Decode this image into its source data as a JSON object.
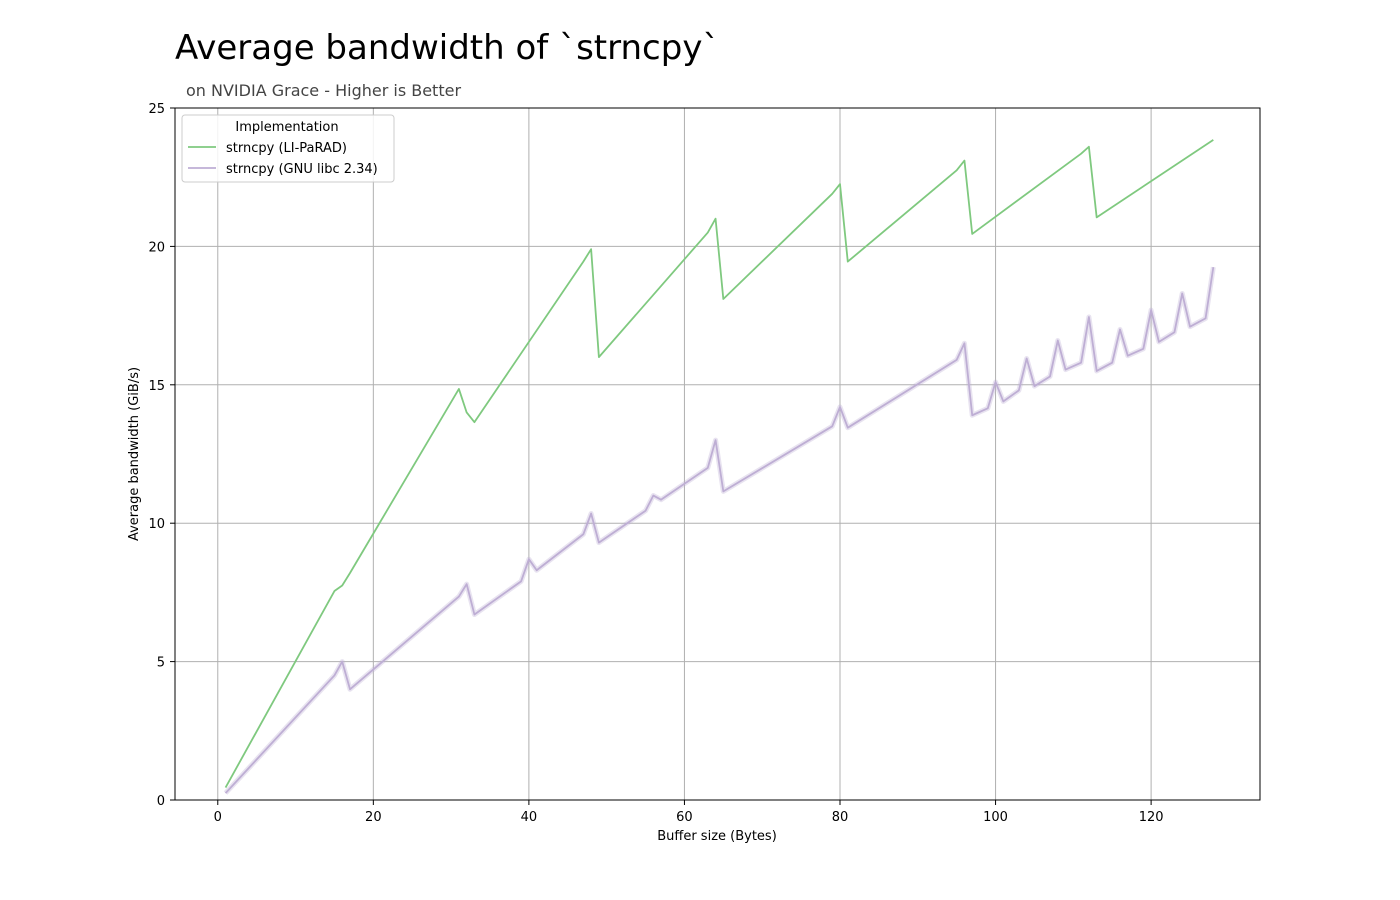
{
  "chart_data": {
    "type": "line",
    "title": "Average bandwidth of `strncpy`",
    "subtitle": "on NVIDIA Grace - Higher is Better",
    "xlabel": "Buffer size (Bytes)",
    "ylabel": "Average bandwidth (GiB/s)",
    "xlim": [
      -5.5,
      134
    ],
    "ylim": [
      0,
      25
    ],
    "xticks": [
      0,
      20,
      40,
      60,
      80,
      100,
      120
    ],
    "yticks": [
      0,
      5,
      10,
      15,
      20,
      25
    ],
    "grid": true,
    "legend": {
      "title": "Implementation",
      "placement": "top-left"
    },
    "series": [
      {
        "name": "strncpy (LI-PaRAD)",
        "color": "#7fc97f",
        "x": [
          1,
          15,
          16,
          17,
          31,
          32,
          33,
          47,
          48,
          49,
          63,
          64,
          65,
          79,
          80,
          81,
          95,
          96,
          97,
          111,
          112,
          113,
          128
        ],
        "y": [
          0.45,
          7.55,
          7.75,
          8.2,
          14.85,
          14.0,
          13.65,
          19.45,
          19.9,
          16.0,
          20.5,
          21.0,
          18.1,
          21.9,
          22.25,
          19.45,
          22.75,
          23.1,
          20.45,
          23.35,
          23.6,
          21.05,
          23.85
        ]
      },
      {
        "name": "strncpy (GNU libc 2.34)",
        "color": "#beaed4",
        "x": [
          1,
          15,
          16,
          17,
          31,
          32,
          33,
          39,
          40,
          41,
          47,
          48,
          49,
          55,
          56,
          57,
          63,
          64,
          65,
          79,
          80,
          81,
          95,
          96,
          97,
          99,
          100,
          101,
          103,
          104,
          105,
          107,
          108,
          109,
          111,
          112,
          113,
          115,
          116,
          117,
          119,
          120,
          121,
          123,
          124,
          125,
          127,
          128
        ],
        "y": [
          0.25,
          4.5,
          5.0,
          4.0,
          7.35,
          7.8,
          6.7,
          7.9,
          8.7,
          8.3,
          9.6,
          10.35,
          9.3,
          10.45,
          11.0,
          10.85,
          12.0,
          13.0,
          11.15,
          13.5,
          14.2,
          13.45,
          15.9,
          16.5,
          13.9,
          14.15,
          15.1,
          14.4,
          14.8,
          15.95,
          14.95,
          15.3,
          16.6,
          15.55,
          15.8,
          17.45,
          15.5,
          15.8,
          17.0,
          16.05,
          16.3,
          17.7,
          16.55,
          16.9,
          18.3,
          17.1,
          17.4,
          19.25
        ]
      }
    ]
  }
}
